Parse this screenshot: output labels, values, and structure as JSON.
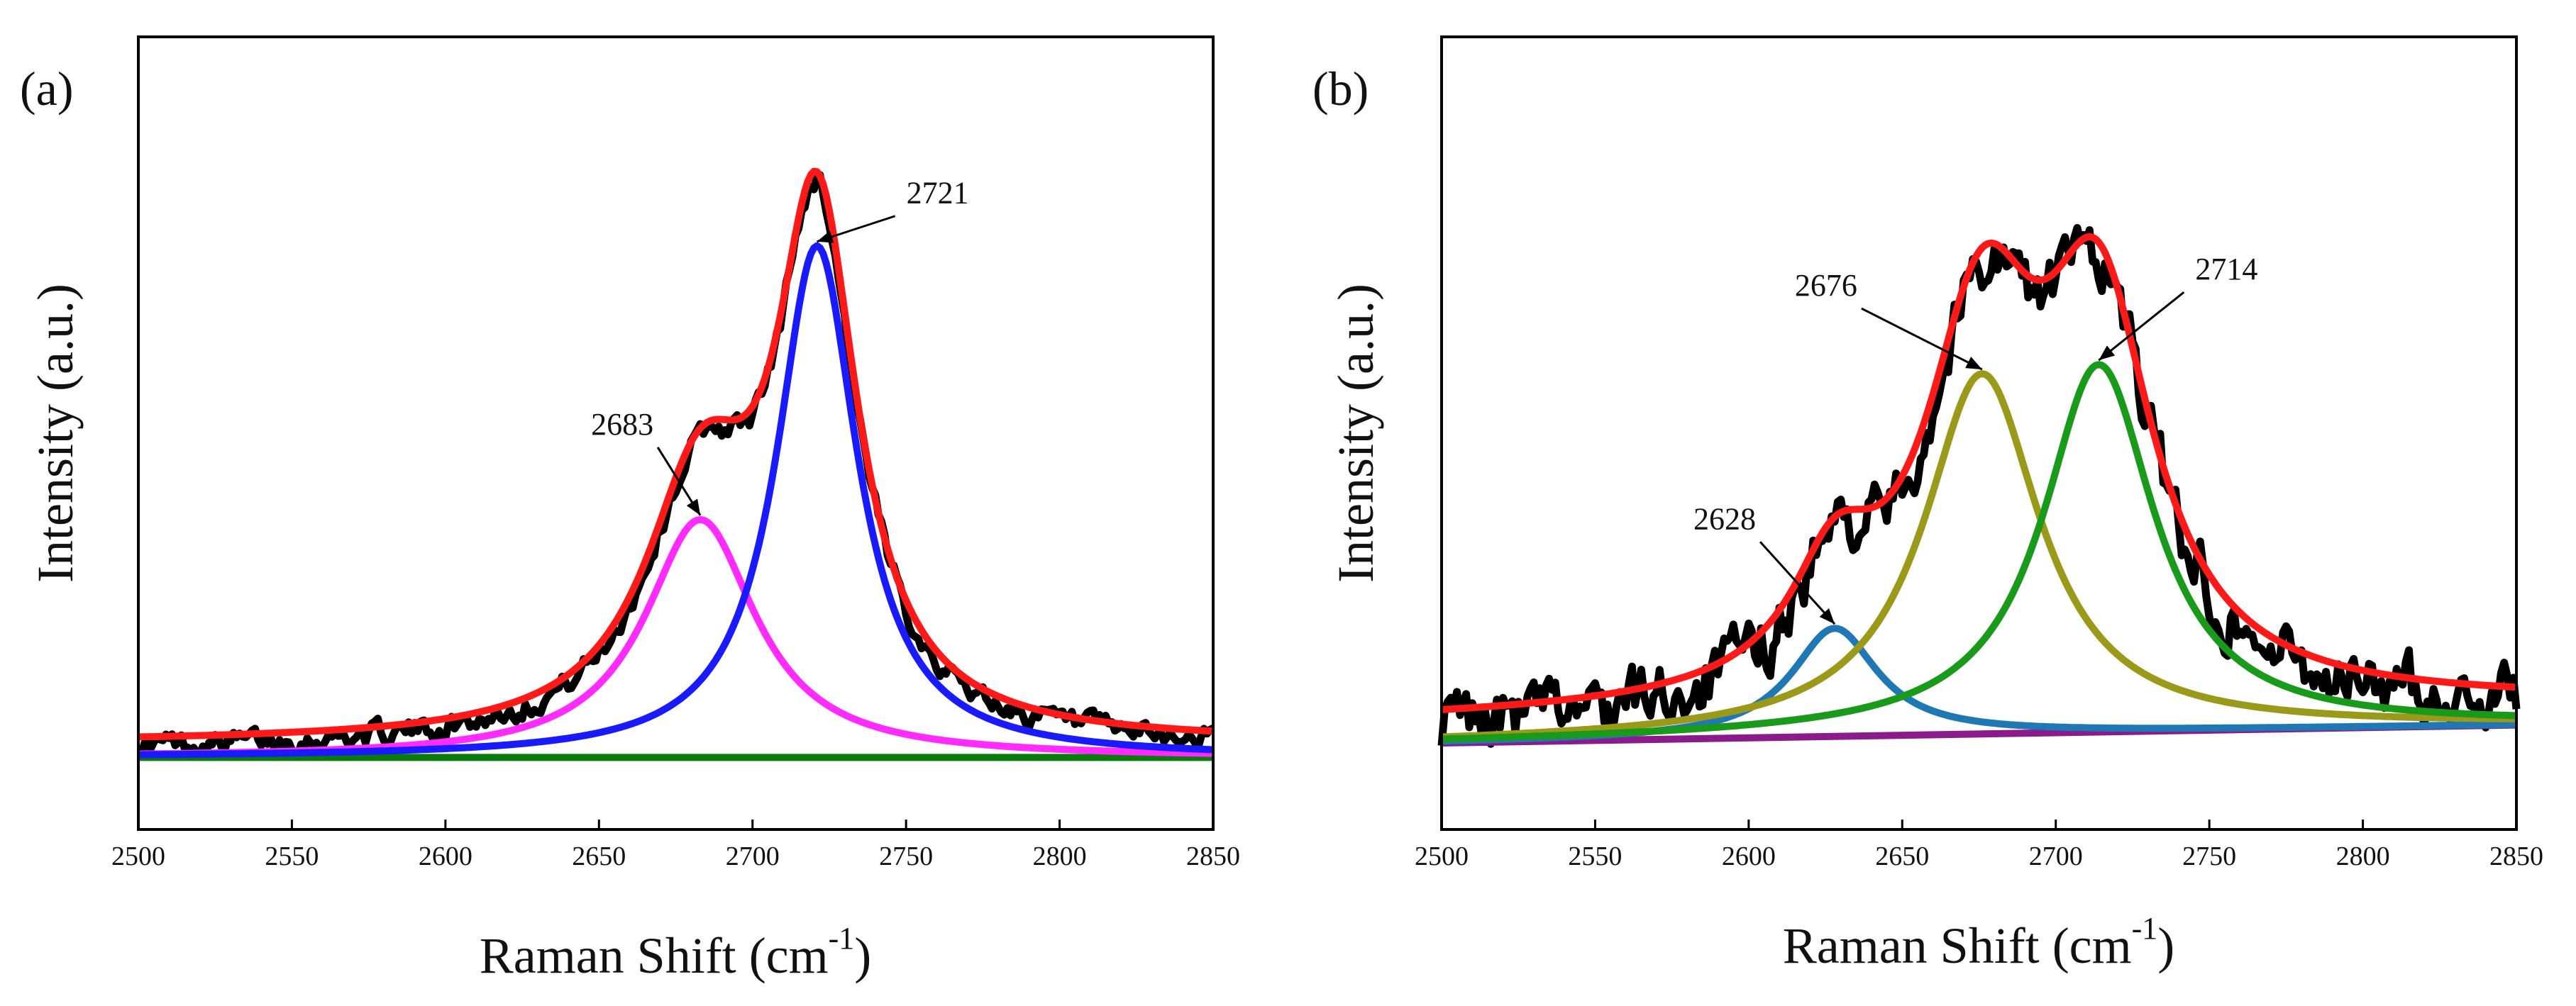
{
  "chart_data": [
    {
      "panel_label": "(a)",
      "type": "line",
      "xlabel": "Raman Shift (cm",
      "xlabel_superscript": "-1",
      "xlabel_suffix": ")",
      "ylabel": "Intensity (a.u.)",
      "xlim": [
        2500,
        2850
      ],
      "ylim": [
        -0.1,
        1.0
      ],
      "x_ticks": [
        2500,
        2550,
        2600,
        2650,
        2700,
        2750,
        2800,
        2850
      ],
      "baseline": 0.0,
      "noise": 0.013,
      "measured": {
        "name": "measured spectrum",
        "color": "#000000"
      },
      "fit": {
        "name": "cumulative fit",
        "color": "#ff1a1a",
        "offset": 0.02
      },
      "peaks": [
        {
          "name": "peak-2683",
          "center": 2683,
          "fwhm": 44,
          "amplitude": 0.33,
          "color": "#ff2bff",
          "label": "2683"
        },
        {
          "name": "peak-2721",
          "center": 2721,
          "fwhm": 32,
          "amplitude": 0.71,
          "color": "#1a1aff",
          "label": "2721"
        }
      ],
      "baseline_series": {
        "name": "baseline",
        "color": "#0a7a0a"
      }
    },
    {
      "panel_label": "(b)",
      "type": "line",
      "xlabel": "Raman Shift (cm",
      "xlabel_superscript": "-1",
      "xlabel_suffix": ")",
      "ylabel": "Intensity (a.u.)",
      "xlim": [
        2500,
        2850
      ],
      "ylim": [
        -0.1,
        1.0
      ],
      "x_ticks": [
        2500,
        2550,
        2600,
        2650,
        2700,
        2750,
        2800,
        2850
      ],
      "baseline_line": {
        "name": "baseline",
        "color": "#8b1a8b",
        "y0": 0.02,
        "y1": 0.045
      },
      "noise": 0.035,
      "measured": {
        "name": "measured spectrum",
        "color": "#000000"
      },
      "fit": {
        "name": "cumulative fit",
        "color": "#ff1a1a",
        "offset": 0.03
      },
      "peaks": [
        {
          "name": "peak-2628",
          "center": 2628,
          "fwhm": 34,
          "amplitude": 0.15,
          "color": "#1f77b4",
          "label": "2628"
        },
        {
          "name": "peak-2676",
          "center": 2676,
          "fwhm": 46,
          "amplitude": 0.5,
          "color": "#9a9a1a",
          "label": "2676"
        },
        {
          "name": "peak-2714",
          "center": 2714,
          "fwhm": 44,
          "amplitude": 0.51,
          "color": "#1a9a1a",
          "label": "2714"
        }
      ]
    }
  ]
}
